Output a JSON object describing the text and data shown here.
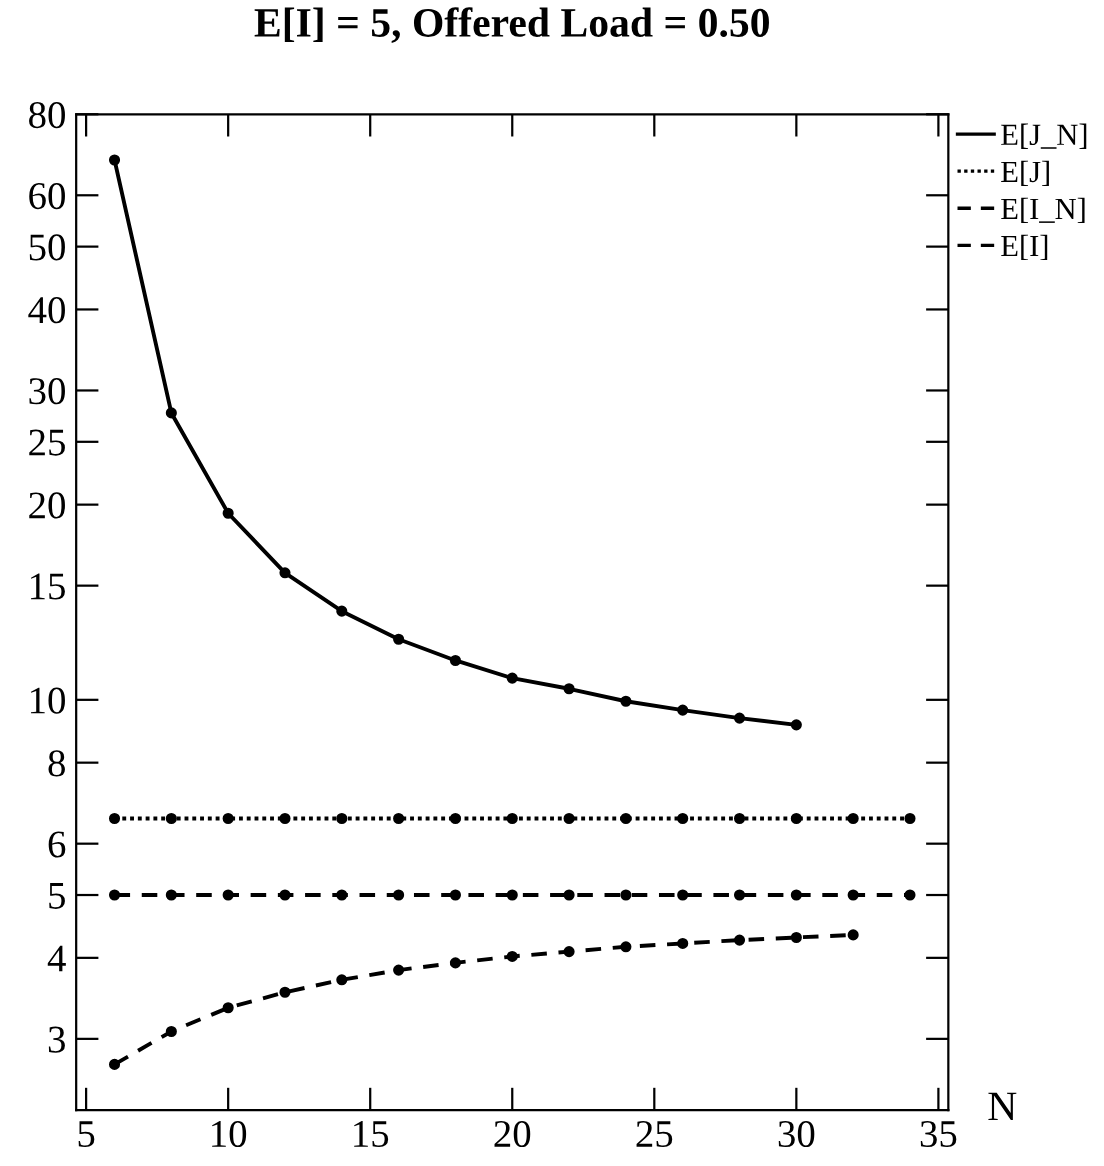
{
  "chart_data": {
    "type": "line",
    "title": "E[I] = 5, Offered Load = 0.50",
    "xlabel": "N",
    "log": "y",
    "grid": false,
    "legend": "top right",
    "marker": "circle",
    "xlim": [
      4.65,
      35.35
    ],
    "xticks": [
      5,
      10,
      15,
      20,
      25,
      30,
      35
    ],
    "ylim": [
      2.33,
      80
    ],
    "yticks": [
      3,
      4,
      5,
      6,
      8,
      10,
      15,
      20,
      25,
      30,
      40,
      50,
      60,
      80
    ],
    "series": [
      {
        "name": "E[J_N]",
        "color": "#000000",
        "line_style": "solid",
        "x": [
          6,
          8,
          10,
          12,
          14,
          16,
          18,
          20,
          22,
          24,
          26,
          28,
          30
        ],
        "values": [
          68,
          27.7,
          19.4,
          15.7,
          13.7,
          12.4,
          11.5,
          10.8,
          10.4,
          9.95,
          9.64,
          9.37,
          9.15
        ]
      },
      {
        "name": "E[J]",
        "color": "#000000",
        "line_style": "dotted",
        "x": [
          6,
          8,
          10,
          12,
          14,
          16,
          18,
          20,
          22,
          24,
          26,
          28,
          30,
          32,
          34
        ],
        "values": [
          6.56,
          6.56,
          6.56,
          6.56,
          6.56,
          6.56,
          6.56,
          6.56,
          6.56,
          6.56,
          6.56,
          6.56,
          6.56,
          6.56,
          6.56
        ]
      },
      {
        "name": "E[I_N]",
        "color": "#000000",
        "line_style": "dashed",
        "x": [
          6,
          8,
          10,
          12,
          14,
          16,
          18,
          20,
          22,
          24,
          26,
          28,
          30,
          32
        ],
        "values": [
          2.74,
          3.08,
          3.35,
          3.54,
          3.7,
          3.83,
          3.93,
          4.02,
          4.09,
          4.16,
          4.21,
          4.26,
          4.3,
          4.34
        ]
      },
      {
        "name": "E[I]",
        "color": "#000000",
        "line_style": "dashed",
        "x": [
          6,
          8,
          10,
          12,
          14,
          16,
          18,
          20,
          22,
          24,
          26,
          28,
          30,
          32,
          34
        ],
        "values": [
          5,
          5,
          5,
          5,
          5,
          5,
          5,
          5,
          5,
          5,
          5,
          5,
          5,
          5,
          5
        ]
      }
    ]
  }
}
